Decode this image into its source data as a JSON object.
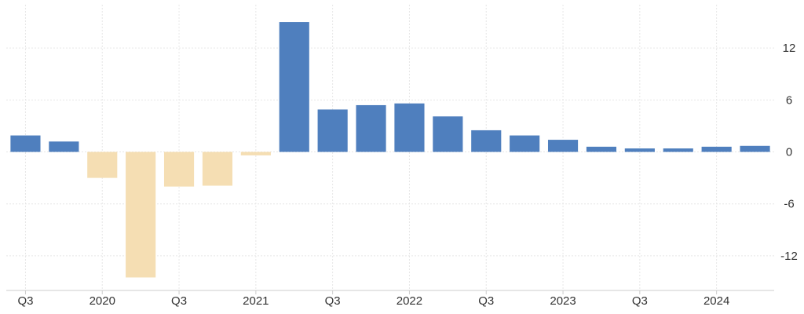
{
  "chart_data": {
    "type": "bar",
    "title": "",
    "xlabel": "",
    "ylabel": "",
    "ylim": [
      -16,
      17
    ],
    "y_ticks": [
      12,
      6,
      0,
      -6,
      -12
    ],
    "y_axis_position": "right",
    "grid": true,
    "legend": "none",
    "categories": [
      "2019 Q3",
      "2019 Q4",
      "2020 Q1",
      "2020 Q2",
      "2020 Q3",
      "2020 Q4",
      "2021 Q1",
      "2021 Q2",
      "2021 Q3",
      "2021 Q4",
      "2022 Q1",
      "2022 Q2",
      "2022 Q3",
      "2022 Q4",
      "2023 Q1",
      "2023 Q2",
      "2023 Q3",
      "2023 Q4",
      "2024 Q1",
      "2024 Q2"
    ],
    "values": [
      1.9,
      1.2,
      -3.0,
      -14.5,
      -4.0,
      -3.9,
      -0.4,
      15.0,
      4.9,
      5.4,
      5.6,
      4.1,
      2.5,
      1.9,
      1.4,
      0.6,
      0.4,
      0.4,
      0.6,
      0.7
    ],
    "x_tick_labels": [
      {
        "index": 0,
        "label": "Q3"
      },
      {
        "index": 2,
        "label": "2020"
      },
      {
        "index": 4,
        "label": "Q3"
      },
      {
        "index": 6,
        "label": "2021"
      },
      {
        "index": 8,
        "label": "Q3"
      },
      {
        "index": 10,
        "label": "2022"
      },
      {
        "index": 12,
        "label": "Q3"
      },
      {
        "index": 14,
        "label": "2023"
      },
      {
        "index": 16,
        "label": "Q3"
      },
      {
        "index": 18,
        "label": "2024"
      }
    ],
    "colors": {
      "positive": "#4f7fbe",
      "negative": "#f5deb3",
      "grid": "#e6e6e6",
      "axis": "#cccccc",
      "text": "#333333"
    }
  }
}
